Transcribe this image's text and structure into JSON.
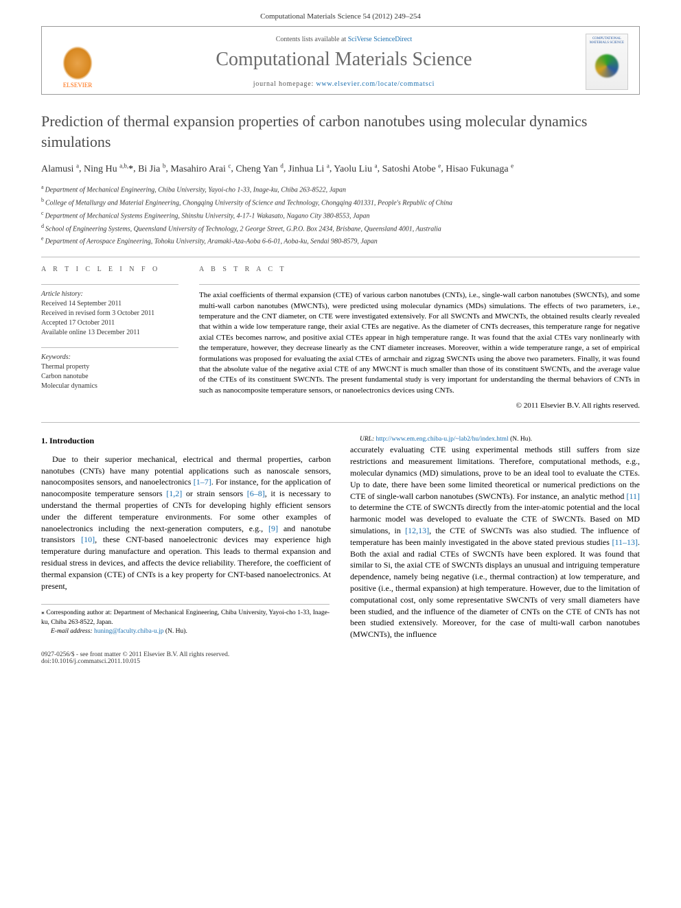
{
  "page_header": "Computational Materials Science 54 (2012) 249–254",
  "top_box": {
    "contents_prefix": "Contents lists available at ",
    "contents_link": "SciVerse ScienceDirect",
    "journal": "Computational Materials Science",
    "homepage_prefix": "journal homepage: ",
    "homepage_url": "www.elsevier.com/locate/commatsci",
    "publisher": "ELSEVIER",
    "cover_label": "COMPUTATIONAL MATERIALS SCIENCE"
  },
  "title": "Prediction of thermal expansion properties of carbon nanotubes using molecular dynamics simulations",
  "authors": [
    {
      "name": "Alamusi",
      "aff": "a"
    },
    {
      "name": "Ning Hu",
      "aff": "a,b,",
      "corr": true
    },
    {
      "name": "Bi Jia",
      "aff": "b"
    },
    {
      "name": "Masahiro Arai",
      "aff": "c"
    },
    {
      "name": "Cheng Yan",
      "aff": "d"
    },
    {
      "name": "Jinhua Li",
      "aff": "a"
    },
    {
      "name": "Yaolu Liu",
      "aff": "a"
    },
    {
      "name": "Satoshi Atobe",
      "aff": "e"
    },
    {
      "name": "Hisao Fukunaga",
      "aff": "e"
    }
  ],
  "affiliations": {
    "a": "Department of Mechanical Engineering, Chiba University, Yayoi-cho 1-33, Inage-ku, Chiba 263-8522, Japan",
    "b": "College of Metallurgy and Material Engineering, Chongqing University of Science and Technology, Chongqing 401331, People's Republic of China",
    "c": "Department of Mechanical Systems Engineering, Shinshu University, 4-17-1 Wakasato, Nagano City 380-8553, Japan",
    "d": "School of Engineering Systems, Queensland University of Technology, 2 George Street, G.P.O. Box 2434, Brisbane, Queensland 4001, Australia",
    "e": "Department of Aerospace Engineering, Tohoku University, Aramaki-Aza-Aoba 6-6-01, Aoba-ku, Sendai 980-8579, Japan"
  },
  "info_label": "A R T I C L E   I N F O",
  "abstract_label": "A B S T R A C T",
  "history": {
    "heading": "Article history:",
    "received": "Received 14 September 2011",
    "revised": "Received in revised form 3 October 2011",
    "accepted": "Accepted 17 October 2011",
    "online": "Available online 13 December 2011"
  },
  "keywords": {
    "heading": "Keywords:",
    "items": [
      "Thermal property",
      "Carbon nanotube",
      "Molecular dynamics"
    ]
  },
  "abstract": "The axial coefficients of thermal expansion (CTE) of various carbon nanotubes (CNTs), i.e., single-wall carbon nanotubes (SWCNTs), and some multi-wall carbon nanotubes (MWCNTs), were predicted using molecular dynamics (MDs) simulations. The effects of two parameters, i.e., temperature and the CNT diameter, on CTE were investigated extensively. For all SWCNTs and MWCNTs, the obtained results clearly revealed that within a wide low temperature range, their axial CTEs are negative. As the diameter of CNTs decreases, this temperature range for negative axial CTEs becomes narrow, and positive axial CTEs appear in high temperature range. It was found that the axial CTEs vary nonlinearly with the temperature, however, they decrease linearly as the CNT diameter increases. Moreover, within a wide temperature range, a set of empirical formulations was proposed for evaluating the axial CTEs of armchair and zigzag SWCNTs using the above two parameters. Finally, it was found that the absolute value of the negative axial CTE of any MWCNT is much smaller than those of its constituent SWCNTs, and the average value of the CTEs of its constituent SWCNTs. The present fundamental study is very important for understanding the thermal behaviors of CNTs in such as nanocomposite temperature sensors, or nanoelectronics devices using CNTs.",
  "abs_copyright": "© 2011 Elsevier B.V. All rights reserved.",
  "intro_heading": "1. Introduction",
  "intro_body_left": "Due to their superior mechanical, electrical and thermal properties, carbon nanotubes (CNTs) have many potential applications such as nanoscale sensors, nanocomposites sensors, and nanoelectronics [1–7]. For instance, for the application of nanocomposite temperature sensors [1,2] or strain sensors [6–8], it is necessary to understand the thermal properties of CNTs for developing highly efficient sensors under the different temperature environments. For some other examples of nanoelectronics including the next-generation computers, e.g., [9] and nanotube transistors [10], these CNT-based nanoelectronic devices may experience high temperature during manufacture and operation. This leads to thermal expansion and residual stress in devices, and affects the device reliability. Therefore, the coefficient of thermal expansion (CTE) of CNTs is a key property for CNT-based nanoelectronics. At present,",
  "intro_body_right": "accurately evaluating CTE using experimental methods still suffers from size restrictions and measurement limitations. Therefore, computational methods, e.g., molecular dynamics (MD) simulations, prove to be an ideal tool to evaluate the CTEs. Up to date, there have been some limited theoretical or numerical predictions on the CTE of single-wall carbon nanotubes (SWCNTs). For instance, an analytic method [11] to determine the CTE of SWCNTs directly from the inter-atomic potential and the local harmonic model was developed to evaluate the CTE of SWCNTs. Based on MD simulations, in [12,13], the CTE of SWCNTs was also studied. The influence of temperature has been mainly investigated in the above stated previous studies [11–13]. Both the axial and radial CTEs of SWCNTs have been explored. It was found that similar to Si, the axial CTE of SWCNTs displays an unusual and intriguing temperature dependence, namely being negative (i.e., thermal contraction) at low temperature, and positive (i.e., thermal expansion) at high temperature. However, due to the limitation of computational cost, only some representative SWCNTs of very small diameters have been studied, and the influence of the diameter of CNTs on the CTE of CNTs has not been studied extensively. Moreover, for the case of multi-wall carbon nanotubes (MWCNTs), the influence",
  "footer": {
    "corresponding": "⁎ Corresponding author at: Department of Mechanical Engineering, Chiba University, Yayoi-cho 1-33, Inage-ku, Chiba 263-8522, Japan.",
    "email_label": "E-mail address:",
    "email": "huning@faculty.chiba-u.jp",
    "email_suffix": "(N. Hu).",
    "url_label": "URL:",
    "url": "http://www.em.eng.chiba-u.jp/~lab2/hu/index.html",
    "url_suffix": "(N. Hu)."
  },
  "bottom": {
    "left_line1": "0927-0256/$ - see front matter © 2011 Elsevier B.V. All rights reserved.",
    "left_line2": "doi:10.1016/j.commatsci.2011.10.015"
  },
  "colors": {
    "link": "#1a6fb0",
    "accent_orange": "#ff6600",
    "text": "#000000",
    "muted": "#555555"
  }
}
